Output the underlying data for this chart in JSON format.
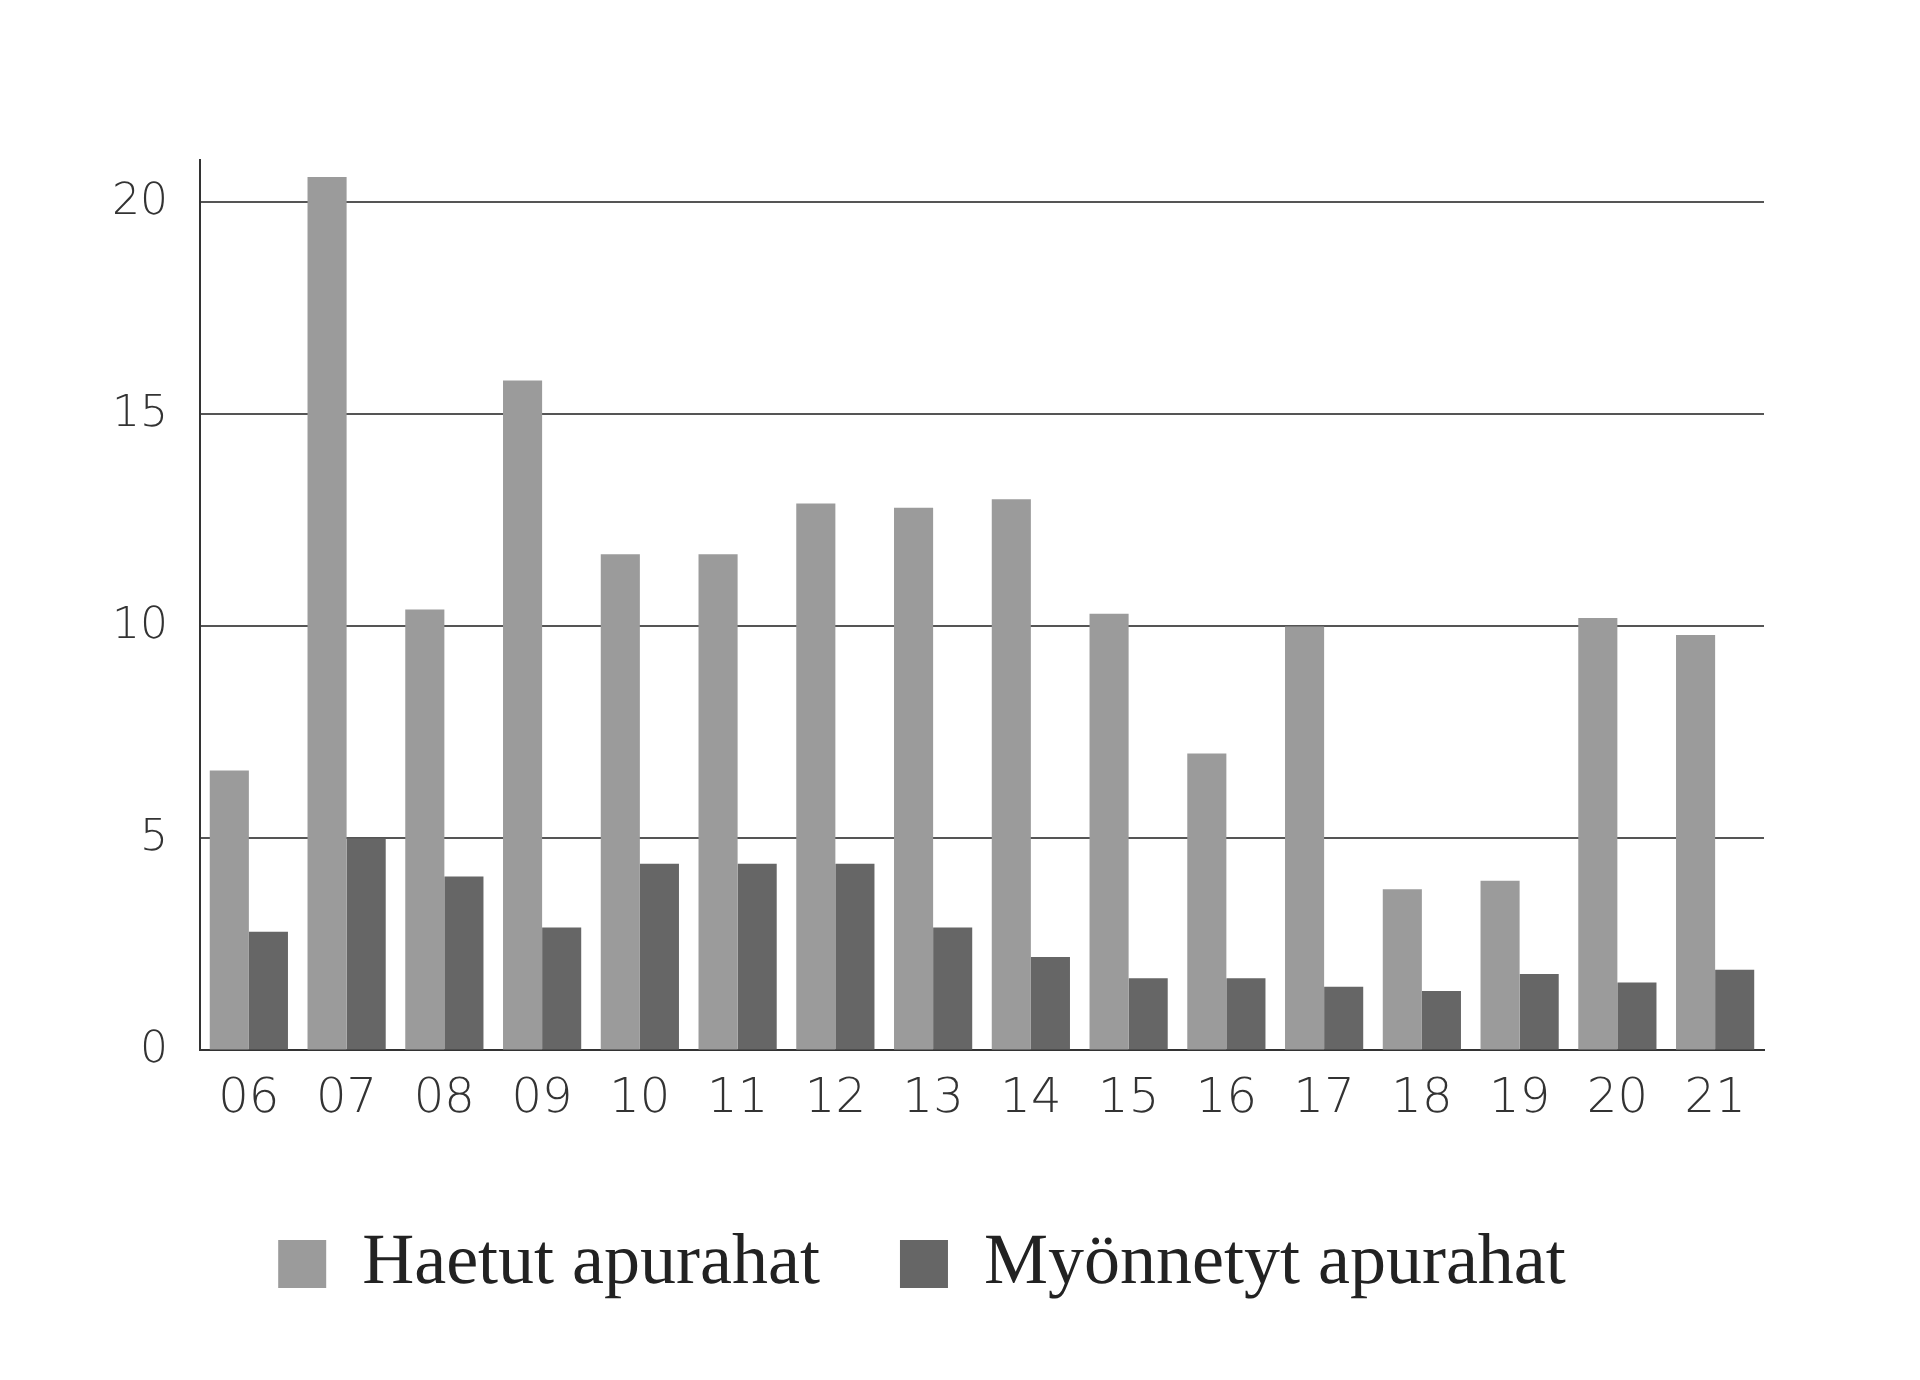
{
  "chart_data": {
    "type": "bar",
    "categories": [
      "06",
      "07",
      "08",
      "09",
      "10",
      "11",
      "12",
      "13",
      "14",
      "15",
      "16",
      "17",
      "18",
      "19",
      "20",
      "21"
    ],
    "series": [
      {
        "name": "Haetut apurahat",
        "color": "#9b9b9b",
        "values": [
          6.6,
          20.6,
          10.4,
          15.8,
          11.7,
          11.7,
          12.9,
          12.8,
          13.0,
          10.3,
          7.0,
          10.0,
          3.8,
          4.0,
          10.2,
          9.8
        ]
      },
      {
        "name": "Myönnetyt apurahat",
        "color": "#666666",
        "values": [
          2.8,
          5.0,
          4.1,
          2.9,
          4.4,
          4.4,
          4.4,
          2.9,
          2.2,
          1.7,
          1.7,
          1.5,
          1.4,
          1.8,
          1.6,
          1.9
        ]
      }
    ],
    "ylim": [
      0,
      21
    ],
    "yticks": [
      0,
      5,
      10,
      15,
      20
    ],
    "grid": "y",
    "legend": "bottom"
  }
}
